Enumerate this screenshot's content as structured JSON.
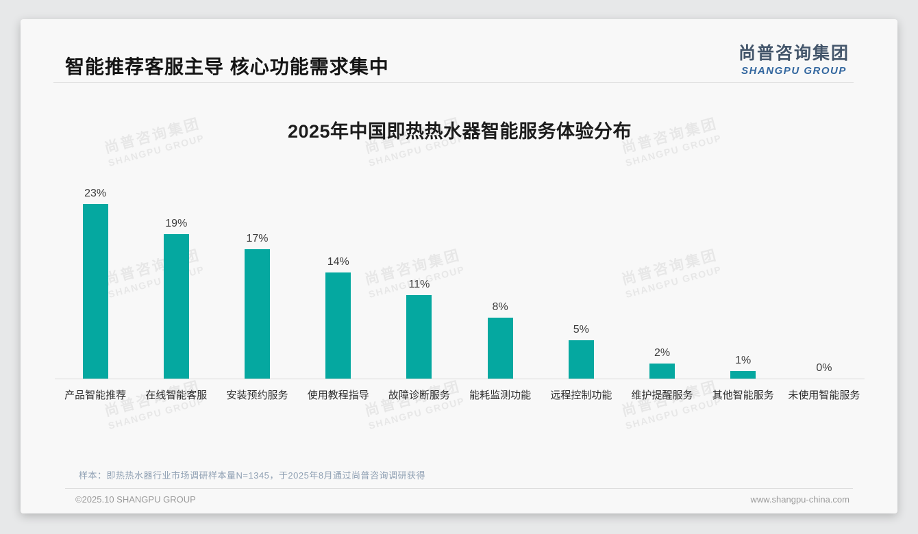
{
  "slide": {
    "title": "智能推荐客服主导 核心功能需求集中",
    "logo": {
      "zh": "尚普咨询集团",
      "en": "SHANGPU GROUP"
    },
    "watermark": {
      "zh": "尚普咨询集团",
      "en": "SHANGPU GROUP"
    },
    "footnote": "样本：即热热水器行业市场调研样本量N=1345，于2025年8月通过尚普咨询调研获得",
    "footer": {
      "copyright": "©2025.10 SHANGPU GROUP",
      "website": "www.shangpu-china.com"
    },
    "colors": {
      "bar": "#05a8a0",
      "logo_zh": "#44566b",
      "logo_en": "#33679f"
    }
  },
  "chart_data": {
    "type": "bar",
    "title": "2025年中国即热热水器智能服务体验分布",
    "categories": [
      "产品智能推荐",
      "在线智能客服",
      "安装预约服务",
      "使用教程指导",
      "故障诊断服务",
      "能耗监测功能",
      "远程控制功能",
      "维护提醒服务",
      "其他智能服务",
      "未使用智能服务"
    ],
    "values": [
      23,
      19,
      17,
      14,
      11,
      8,
      5,
      2,
      1,
      0
    ],
    "value_labels": [
      "23%",
      "19%",
      "17%",
      "14%",
      "11%",
      "8%",
      "5%",
      "2%",
      "1%",
      "0%"
    ],
    "unit": "percent",
    "xlabel": "",
    "ylabel": "",
    "ylim": [
      0,
      26
    ],
    "grid": false,
    "legend": false,
    "bar_color": "#05a8a0"
  }
}
